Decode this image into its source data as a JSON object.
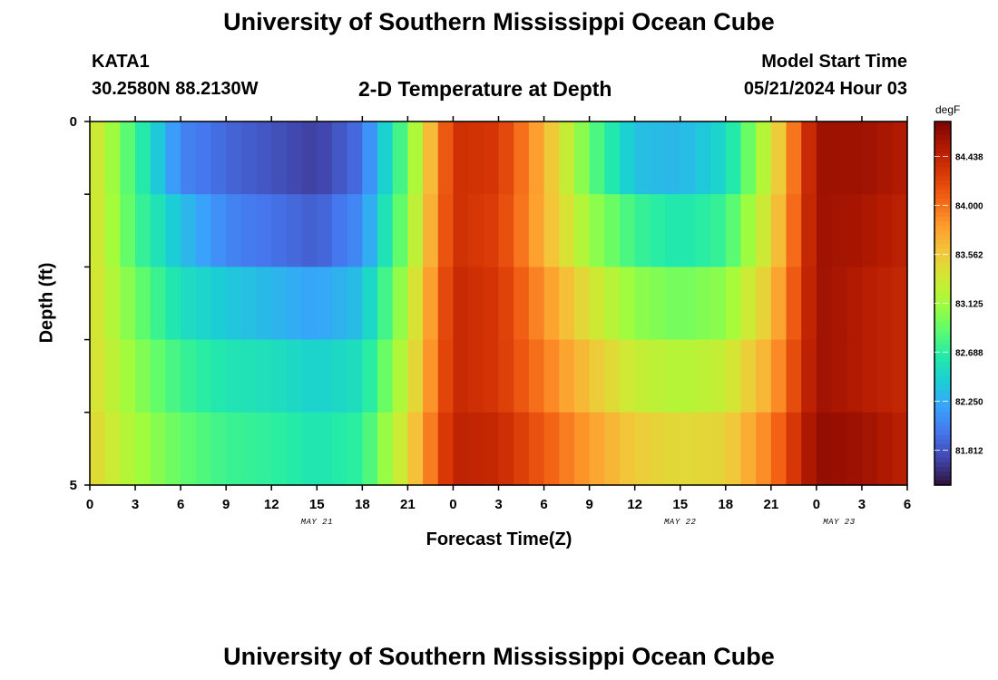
{
  "titles": {
    "main": "University of Southern Mississippi Ocean Cube",
    "repeat": "University of Southern Mississippi Ocean Cube"
  },
  "station": {
    "id": "KATA1",
    "coords": "30.2580N  88.2130W"
  },
  "plot_title": "2-D Temperature at Depth",
  "model": {
    "label": "Model Start Time",
    "value": "05/21/2024 Hour 03"
  },
  "colors": {
    "colormap": [
      "#30123b",
      "#4145ab",
      "#4675ed",
      "#39a2fc",
      "#1bcfd4",
      "#24eca6",
      "#61fc6c",
      "#a4fc3b",
      "#d1e834",
      "#f3c63a",
      "#fe9b2d",
      "#f36315",
      "#d93806",
      "#b11901",
      "#7a0403"
    ]
  },
  "chart_data": {
    "type": "heatmap",
    "title": "2-D Temperature at Depth",
    "xlabel": "Forecast Time(Z)",
    "ylabel": "Depth (ft)",
    "x_ticks": [
      "0",
      "3",
      "6",
      "9",
      "12",
      "15",
      "18",
      "21",
      "0",
      "3",
      "6",
      "9",
      "12",
      "15",
      "18",
      "21",
      "0",
      "3",
      "6"
    ],
    "date_labels": [
      "MAY 21",
      "MAY 22",
      "MAY 23"
    ],
    "y_ticks": [
      "0",
      "5"
    ],
    "ylim": [
      0,
      5
    ],
    "colorbar": {
      "unit": "degF",
      "ticks": [
        "84.438",
        "84.000",
        "83.562",
        "83.125",
        "82.688",
        "82.250",
        "81.812"
      ],
      "range": [
        81.5,
        84.75
      ]
    },
    "depths_ft": [
      0,
      1,
      2,
      3,
      4,
      5
    ],
    "time_hours": [
      0,
      3,
      6,
      9,
      12,
      15,
      18,
      21,
      24,
      27,
      30,
      33,
      36,
      39,
      42,
      45,
      48,
      51,
      54
    ],
    "temperature_degF": [
      [
        83.45,
        82.75,
        82.05,
        81.9,
        81.8,
        81.7,
        81.95,
        82.95,
        84.35,
        84.3,
        83.7,
        82.9,
        82.35,
        82.3,
        82.5,
        83.35,
        84.6,
        84.6,
        84.5
      ],
      [
        83.45,
        82.8,
        82.35,
        82.05,
        81.95,
        81.85,
        82.1,
        83.05,
        84.35,
        84.25,
        83.7,
        83.1,
        82.75,
        82.6,
        82.75,
        83.45,
        84.6,
        84.55,
        84.45
      ],
      [
        83.45,
        82.95,
        82.55,
        82.4,
        82.3,
        82.2,
        82.35,
        83.2,
        84.4,
        84.3,
        83.85,
        83.4,
        83.05,
        82.95,
        83.05,
        83.6,
        84.6,
        84.5,
        84.4
      ],
      [
        83.45,
        83.05,
        82.75,
        82.6,
        82.55,
        82.45,
        82.55,
        83.3,
        84.4,
        84.3,
        83.95,
        83.6,
        83.3,
        83.2,
        83.3,
        83.75,
        84.6,
        84.5,
        84.4
      ],
      [
        83.5,
        83.15,
        82.9,
        82.75,
        82.7,
        82.6,
        82.7,
        83.45,
        84.45,
        84.4,
        84.1,
        83.8,
        83.55,
        83.45,
        83.5,
        83.95,
        84.65,
        84.6,
        84.45
      ]
    ]
  }
}
